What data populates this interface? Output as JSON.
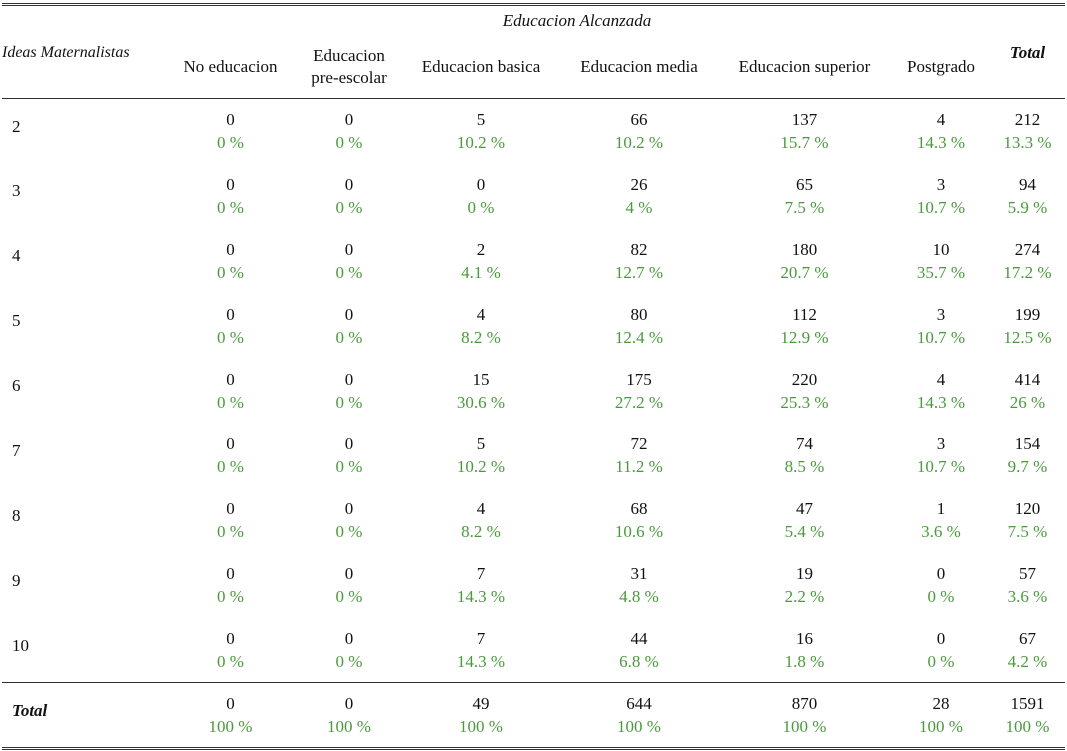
{
  "table": {
    "group_header": "Educacion Alcanzada",
    "row_header": "Ideas Maternalistas",
    "total_header": "Total",
    "columns": [
      {
        "id": "no-educacion",
        "lines": [
          "No educacion"
        ]
      },
      {
        "id": "pre-escolar",
        "lines": [
          "Educacion",
          "pre-escolar"
        ]
      },
      {
        "id": "basica",
        "lines": [
          "Educacion basica"
        ]
      },
      {
        "id": "media",
        "lines": [
          "Educacion media"
        ]
      },
      {
        "id": "superior",
        "lines": [
          "Educacion superior"
        ]
      },
      {
        "id": "postgrado",
        "lines": [
          "Postgrado"
        ]
      }
    ],
    "rows": [
      {
        "label": "2",
        "cells": [
          [
            "0",
            "0 %"
          ],
          [
            "0",
            "0 %"
          ],
          [
            "5",
            "10.2 %"
          ],
          [
            "66",
            "10.2 %"
          ],
          [
            "137",
            "15.7 %"
          ],
          [
            "4",
            "14.3 %"
          ],
          [
            "212",
            "13.3 %"
          ]
        ]
      },
      {
        "label": "3",
        "cells": [
          [
            "0",
            "0 %"
          ],
          [
            "0",
            "0 %"
          ],
          [
            "0",
            "0 %"
          ],
          [
            "26",
            "4 %"
          ],
          [
            "65",
            "7.5 %"
          ],
          [
            "3",
            "10.7 %"
          ],
          [
            "94",
            "5.9 %"
          ]
        ]
      },
      {
        "label": "4",
        "cells": [
          [
            "0",
            "0 %"
          ],
          [
            "0",
            "0 %"
          ],
          [
            "2",
            "4.1 %"
          ],
          [
            "82",
            "12.7 %"
          ],
          [
            "180",
            "20.7 %"
          ],
          [
            "10",
            "35.7 %"
          ],
          [
            "274",
            "17.2 %"
          ]
        ]
      },
      {
        "label": "5",
        "cells": [
          [
            "0",
            "0 %"
          ],
          [
            "0",
            "0 %"
          ],
          [
            "4",
            "8.2 %"
          ],
          [
            "80",
            "12.4 %"
          ],
          [
            "112",
            "12.9 %"
          ],
          [
            "3",
            "10.7 %"
          ],
          [
            "199",
            "12.5 %"
          ]
        ]
      },
      {
        "label": "6",
        "cells": [
          [
            "0",
            "0 %"
          ],
          [
            "0",
            "0 %"
          ],
          [
            "15",
            "30.6 %"
          ],
          [
            "175",
            "27.2 %"
          ],
          [
            "220",
            "25.3 %"
          ],
          [
            "4",
            "14.3 %"
          ],
          [
            "414",
            "26 %"
          ]
        ]
      },
      {
        "label": "7",
        "cells": [
          [
            "0",
            "0 %"
          ],
          [
            "0",
            "0 %"
          ],
          [
            "5",
            "10.2 %"
          ],
          [
            "72",
            "11.2 %"
          ],
          [
            "74",
            "8.5 %"
          ],
          [
            "3",
            "10.7 %"
          ],
          [
            "154",
            "9.7 %"
          ]
        ]
      },
      {
        "label": "8",
        "cells": [
          [
            "0",
            "0 %"
          ],
          [
            "0",
            "0 %"
          ],
          [
            "4",
            "8.2 %"
          ],
          [
            "68",
            "10.6 %"
          ],
          [
            "47",
            "5.4 %"
          ],
          [
            "1",
            "3.6 %"
          ],
          [
            "120",
            "7.5 %"
          ]
        ]
      },
      {
        "label": "9",
        "cells": [
          [
            "0",
            "0 %"
          ],
          [
            "0",
            "0 %"
          ],
          [
            "7",
            "14.3 %"
          ],
          [
            "31",
            "4.8 %"
          ],
          [
            "19",
            "2.2 %"
          ],
          [
            "0",
            "0 %"
          ],
          [
            "57",
            "3.6 %"
          ]
        ]
      },
      {
        "label": "10",
        "cells": [
          [
            "0",
            "0 %"
          ],
          [
            "0",
            "0 %"
          ],
          [
            "7",
            "14.3 %"
          ],
          [
            "44",
            "6.8 %"
          ],
          [
            "16",
            "1.8 %"
          ],
          [
            "0",
            "0 %"
          ],
          [
            "67",
            "4.2 %"
          ]
        ]
      }
    ],
    "total_row": {
      "label": "Total",
      "cells": [
        [
          "0",
          "100 %"
        ],
        [
          "0",
          "100 %"
        ],
        [
          "49",
          "100 %"
        ],
        [
          "644",
          "100 %"
        ],
        [
          "870",
          "100 %"
        ],
        [
          "28",
          "100 %"
        ],
        [
          "1591",
          "100 %"
        ]
      ]
    }
  },
  "colors": {
    "count": "#111111",
    "percent": "#4a9a3c",
    "rules": "#333333"
  }
}
